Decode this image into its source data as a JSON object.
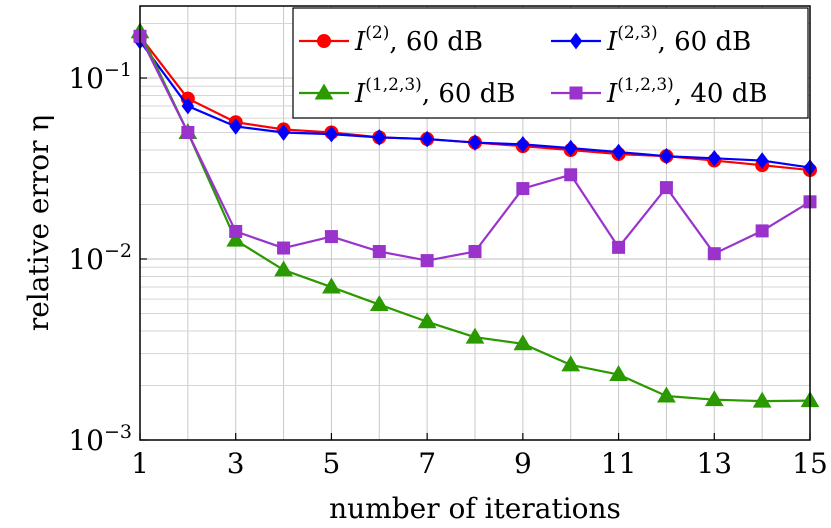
{
  "chart_data": {
    "type": "line",
    "xlabel": "number of iterations",
    "ylabel": "relative error η",
    "y_scale": "log",
    "xlim": [
      1,
      15
    ],
    "ylim": [
      0.001,
      0.25
    ],
    "grid": true,
    "legend_position": "top-right",
    "x_ticks": [
      1,
      3,
      5,
      7,
      9,
      11,
      13,
      15
    ],
    "y_ticks": [
      {
        "value": 0.1,
        "base": "10",
        "exp": "−1"
      },
      {
        "value": 0.01,
        "base": "10",
        "exp": "−2"
      },
      {
        "value": 0.001,
        "base": "10",
        "exp": "−3"
      }
    ],
    "x": [
      1,
      2,
      3,
      4,
      5,
      6,
      7,
      8,
      9,
      10,
      11,
      12,
      13,
      14,
      15
    ],
    "series": [
      {
        "name": "I(2), 60 dB",
        "legend": {
          "symbol": "I",
          "sup": "(2)",
          "suffix": ", 60 dB"
        },
        "color": "#ff0000",
        "marker": "circle",
        "values": [
          0.17,
          0.077,
          0.057,
          0.052,
          0.05,
          0.047,
          0.046,
          0.044,
          0.042,
          0.04,
          0.038,
          0.037,
          0.035,
          0.033,
          0.031
        ]
      },
      {
        "name": "I(2,3), 60 dB",
        "legend": {
          "symbol": "I",
          "sup": "(2,3)",
          "suffix": ", 60 dB"
        },
        "color": "#0000ff",
        "marker": "diamond",
        "values": [
          0.16,
          0.07,
          0.054,
          0.05,
          0.049,
          0.047,
          0.046,
          0.044,
          0.043,
          0.041,
          0.039,
          0.037,
          0.036,
          0.035,
          0.032
        ]
      },
      {
        "name": "I(1,2,3), 60 dB",
        "legend": {
          "symbol": "I",
          "sup": "(1,2,3)",
          "suffix": ", 60 dB"
        },
        "color": "#2a9a00",
        "marker": "triangle",
        "values": [
          0.18,
          0.05,
          0.0127,
          0.0087,
          0.007,
          0.0056,
          0.0045,
          0.0037,
          0.0034,
          0.0026,
          0.0023,
          0.00175,
          0.00167,
          0.00164,
          0.00165
        ]
      },
      {
        "name": "I(1,2,3), 40 dB",
        "legend": {
          "symbol": "I",
          "sup": "(1,2,3)",
          "suffix": ", 40 dB"
        },
        "color": "#9933cc",
        "marker": "square",
        "values": [
          0.17,
          0.05,
          0.0142,
          0.0115,
          0.0133,
          0.011,
          0.0098,
          0.011,
          0.0245,
          0.0292,
          0.0116,
          0.0248,
          0.0107,
          0.0143,
          0.0207
        ]
      }
    ]
  }
}
